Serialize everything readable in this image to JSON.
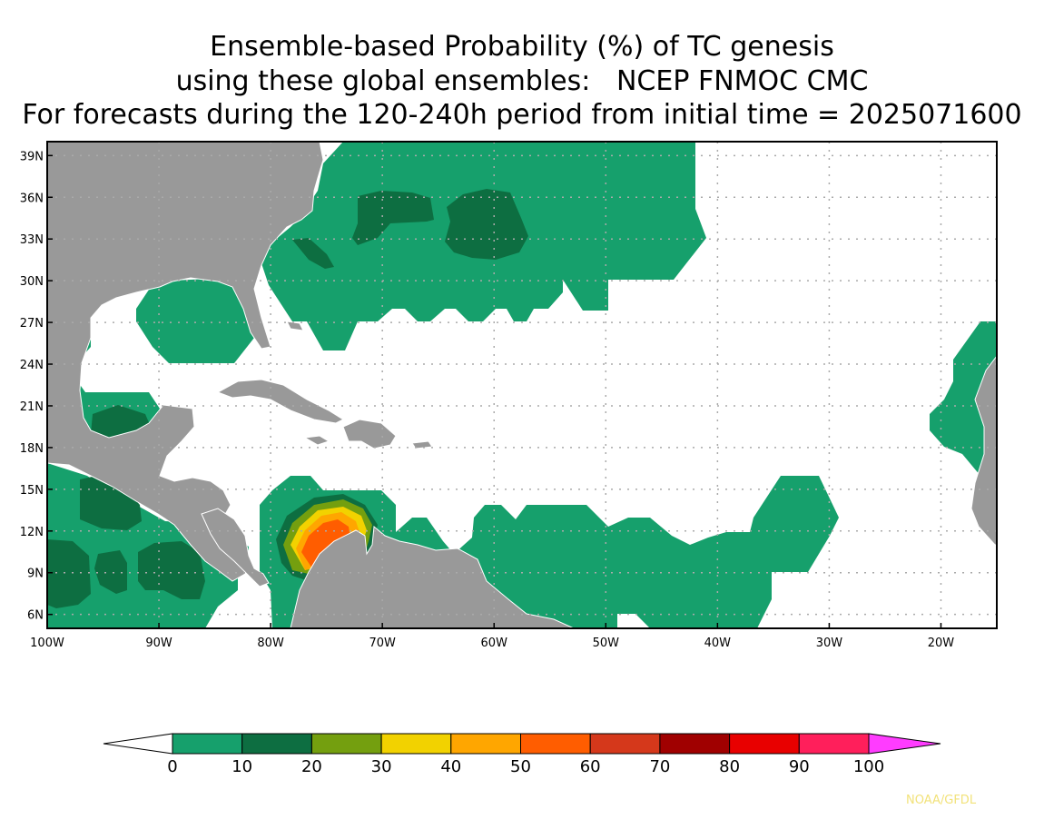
{
  "title": {
    "line1": "Ensemble-based Probability (%) of TC genesis",
    "line2": "using these global ensembles:   NCEP FNMOC CMC",
    "line3": "For forecasts during the 120-240h period from initial time = 2025071600"
  },
  "map": {
    "lon_range": [
      -100,
      -15
    ],
    "lat_range": [
      5,
      40
    ],
    "lon_labels": [
      {
        "lon": -100,
        "text": "100W"
      },
      {
        "lon": -90,
        "text": "90W"
      },
      {
        "lon": -80,
        "text": "80W"
      },
      {
        "lon": -70,
        "text": "70W"
      },
      {
        "lon": -60,
        "text": "60W"
      },
      {
        "lon": -50,
        "text": "50W"
      },
      {
        "lon": -40,
        "text": "40W"
      },
      {
        "lon": -30,
        "text": "30W"
      },
      {
        "lon": -20,
        "text": "20W"
      }
    ],
    "lat_labels": [
      {
        "lat": 6,
        "text": "6N"
      },
      {
        "lat": 9,
        "text": "9N"
      },
      {
        "lat": 12,
        "text": "12N"
      },
      {
        "lat": 15,
        "text": "15N"
      },
      {
        "lat": 18,
        "text": "18N"
      },
      {
        "lat": 21,
        "text": "21N"
      },
      {
        "lat": 24,
        "text": "24N"
      },
      {
        "lat": 27,
        "text": "27N"
      },
      {
        "lat": 30,
        "text": "30N"
      },
      {
        "lat": 33,
        "text": "33N"
      },
      {
        "lat": 36,
        "text": "36N"
      },
      {
        "lat": 39,
        "text": "39N"
      }
    ],
    "land_color": "#999999",
    "grid": "dotted"
  },
  "legend": {
    "labels": [
      "0",
      "10",
      "20",
      "30",
      "40",
      "50",
      "60",
      "70",
      "80",
      "90",
      "100"
    ],
    "colors": [
      "#16a06c",
      "#0d6e41",
      "#749f0f",
      "#f2d200",
      "#ffa600",
      "#ff5d00",
      "#d5381b",
      "#a00000",
      "#e80000",
      "#ff1f5b"
    ],
    "over_color": "#ff3cff",
    "under_color": "#ffffff"
  },
  "credit": "NOAA/GFDL"
}
